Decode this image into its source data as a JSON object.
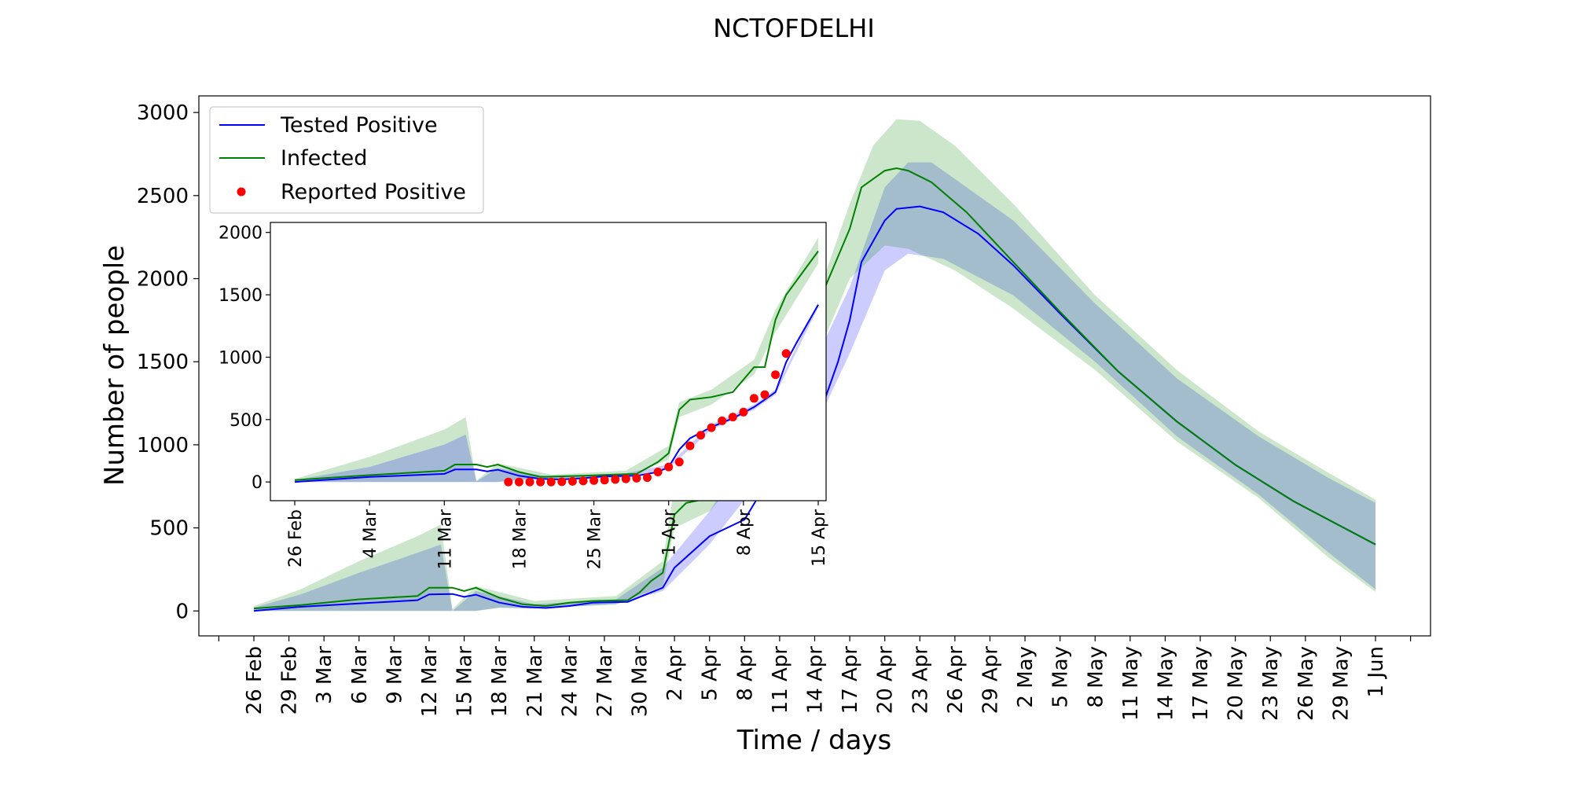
{
  "chart_data": {
    "type": "line",
    "title": "NCTOFDELHI",
    "xlabel": "Time / days",
    "ylabel": "Number of people",
    "start_date": "2020-02-26",
    "end_date": "2020-06-01",
    "xtick_labels": [
      "26 Feb",
      "29 Feb",
      "3 Mar",
      "6 Mar",
      "9 Mar",
      "12 Mar",
      "15 Mar",
      "18 Mar",
      "21 Mar",
      "24 Mar",
      "27 Mar",
      "30 Mar",
      "2 Apr",
      "5 Apr",
      "8 Apr",
      "11 Apr",
      "14 Apr",
      "17 Apr",
      "20 Apr",
      "23 Apr",
      "26 Apr",
      "29 Apr",
      "2 May",
      "5 May",
      "8 May",
      "11 May",
      "14 May",
      "17 May",
      "20 May",
      "23 May",
      "26 May",
      "29 May",
      "1 Jun"
    ],
    "ylim": [
      -150,
      3100
    ],
    "yticks": [
      0,
      500,
      1000,
      1500,
      2000,
      2500,
      3000
    ],
    "grid": false,
    "legend": {
      "placement": "upper-left",
      "entries": [
        {
          "name": "Tested Positive",
          "marker": "line",
          "color": "#0000ff"
        },
        {
          "name": "Infected",
          "marker": "line",
          "color": "#008000"
        },
        {
          "name": "Reported Positive",
          "marker": "dot",
          "color": "#ff0000"
        }
      ]
    },
    "series": [
      {
        "name": "Tested Positive",
        "color": "#0000ff",
        "points": [
          [
            "2020-02-26",
            0
          ],
          [
            "2020-03-01",
            25
          ],
          [
            "2020-03-06",
            45
          ],
          [
            "2020-03-11",
            65
          ],
          [
            "2020-03-12",
            100
          ],
          [
            "2020-03-14",
            102
          ],
          [
            "2020-03-15",
            85
          ],
          [
            "2020-03-16",
            98
          ],
          [
            "2020-03-18",
            50
          ],
          [
            "2020-03-20",
            25
          ],
          [
            "2020-03-22",
            18
          ],
          [
            "2020-03-24",
            30
          ],
          [
            "2020-03-26",
            50
          ],
          [
            "2020-03-29",
            55
          ],
          [
            "2020-04-01",
            140
          ],
          [
            "2020-04-02",
            260
          ],
          [
            "2020-04-05",
            450
          ],
          [
            "2020-04-08",
            550
          ],
          [
            "2020-04-11",
            900
          ],
          [
            "2020-04-14",
            1100
          ],
          [
            "2020-04-16",
            1500
          ],
          [
            "2020-04-17",
            1750
          ],
          [
            "2020-04-18",
            2100
          ],
          [
            "2020-04-20",
            2350
          ],
          [
            "2020-04-21",
            2420
          ],
          [
            "2020-04-23",
            2435
          ],
          [
            "2020-04-25",
            2400
          ],
          [
            "2020-04-28",
            2270
          ],
          [
            "2020-05-01",
            2080
          ],
          [
            "2020-05-05",
            1790
          ],
          [
            "2020-05-10",
            1440
          ],
          [
            "2020-05-15",
            1140
          ],
          [
            "2020-05-20",
            880
          ],
          [
            "2020-05-25",
            660
          ],
          [
            "2020-06-01",
            400
          ]
        ],
        "band_lower": [
          [
            "2020-02-26",
            0
          ],
          [
            "2020-03-16",
            0
          ],
          [
            "2020-03-18",
            20
          ],
          [
            "2020-03-21",
            15
          ],
          [
            "2020-03-28",
            40
          ],
          [
            "2020-04-01",
            120
          ],
          [
            "2020-04-05",
            400
          ],
          [
            "2020-04-10",
            850
          ],
          [
            "2020-04-14",
            1100
          ],
          [
            "2020-04-17",
            1550
          ],
          [
            "2020-04-20",
            2050
          ],
          [
            "2020-04-22",
            2150
          ],
          [
            "2020-04-25",
            2120
          ],
          [
            "2020-05-01",
            1900
          ],
          [
            "2020-05-08",
            1500
          ],
          [
            "2020-05-15",
            1050
          ],
          [
            "2020-05-22",
            700
          ],
          [
            "2020-05-28",
            350
          ],
          [
            "2020-06-01",
            130
          ]
        ],
        "band_upper": [
          [
            "2020-02-26",
            20
          ],
          [
            "2020-03-01",
            100
          ],
          [
            "2020-03-06",
            230
          ],
          [
            "2020-03-11",
            350
          ],
          [
            "2020-03-13",
            400
          ],
          [
            "2020-03-14",
            0
          ],
          [
            "2020-03-16",
            120
          ],
          [
            "2020-03-21",
            40
          ],
          [
            "2020-03-28",
            70
          ],
          [
            "2020-04-01",
            260
          ],
          [
            "2020-04-05",
            600
          ],
          [
            "2020-04-10",
            1150
          ],
          [
            "2020-04-14",
            1500
          ],
          [
            "2020-04-17",
            1950
          ],
          [
            "2020-04-20",
            2550
          ],
          [
            "2020-04-22",
            2700
          ],
          [
            "2020-04-24",
            2700
          ],
          [
            "2020-05-01",
            2350
          ],
          [
            "2020-05-08",
            1850
          ],
          [
            "2020-05-15",
            1400
          ],
          [
            "2020-05-22",
            1050
          ],
          [
            "2020-05-28",
            800
          ],
          [
            "2020-06-01",
            650
          ]
        ]
      },
      {
        "name": "Infected",
        "color": "#008000",
        "points": [
          [
            "2020-02-26",
            15
          ],
          [
            "2020-03-01",
            35
          ],
          [
            "2020-03-06",
            70
          ],
          [
            "2020-03-11",
            90
          ],
          [
            "2020-03-12",
            140
          ],
          [
            "2020-03-14",
            140
          ],
          [
            "2020-03-15",
            120
          ],
          [
            "2020-03-16",
            140
          ],
          [
            "2020-03-18",
            80
          ],
          [
            "2020-03-20",
            40
          ],
          [
            "2020-03-22",
            30
          ],
          [
            "2020-03-24",
            50
          ],
          [
            "2020-03-26",
            60
          ],
          [
            "2020-03-29",
            65
          ],
          [
            "2020-03-30",
            110
          ],
          [
            "2020-03-31",
            180
          ],
          [
            "2020-04-01",
            230
          ],
          [
            "2020-04-02",
            580
          ],
          [
            "2020-04-03",
            650
          ],
          [
            "2020-04-05",
            680
          ],
          [
            "2020-04-08",
            800
          ],
          [
            "2020-04-11",
            1300
          ],
          [
            "2020-04-14",
            1800
          ],
          [
            "2020-04-17",
            2300
          ],
          [
            "2020-04-18",
            2550
          ],
          [
            "2020-04-20",
            2650
          ],
          [
            "2020-04-21",
            2665
          ],
          [
            "2020-04-22",
            2650
          ],
          [
            "2020-04-24",
            2580
          ],
          [
            "2020-04-27",
            2400
          ],
          [
            "2020-05-01",
            2100
          ],
          [
            "2020-05-05",
            1800
          ],
          [
            "2020-05-10",
            1440
          ],
          [
            "2020-05-15",
            1140
          ],
          [
            "2020-05-20",
            880
          ],
          [
            "2020-05-25",
            660
          ],
          [
            "2020-06-01",
            400
          ]
        ],
        "band_lower": [
          [
            "2020-02-26",
            0
          ],
          [
            "2020-03-16",
            0
          ],
          [
            "2020-03-18",
            20
          ],
          [
            "2020-03-21",
            15
          ],
          [
            "2020-03-28",
            40
          ],
          [
            "2020-04-01",
            150
          ],
          [
            "2020-04-02",
            500
          ],
          [
            "2020-04-05",
            600
          ],
          [
            "2020-04-10",
            1000
          ],
          [
            "2020-04-14",
            1500
          ],
          [
            "2020-04-17",
            2000
          ],
          [
            "2020-04-20",
            2200
          ],
          [
            "2020-04-22",
            2180
          ],
          [
            "2020-04-26",
            2050
          ],
          [
            "2020-05-01",
            1820
          ],
          [
            "2020-05-08",
            1450
          ],
          [
            "2020-05-15",
            1020
          ],
          [
            "2020-05-22",
            680
          ],
          [
            "2020-05-28",
            320
          ],
          [
            "2020-06-01",
            115
          ]
        ],
        "band_upper": [
          [
            "2020-02-26",
            30
          ],
          [
            "2020-03-01",
            130
          ],
          [
            "2020-03-06",
            300
          ],
          [
            "2020-03-11",
            450
          ],
          [
            "2020-03-13",
            520
          ],
          [
            "2020-03-14",
            10
          ],
          [
            "2020-03-16",
            150
          ],
          [
            "2020-03-21",
            60
          ],
          [
            "2020-03-28",
            90
          ],
          [
            "2020-04-01",
            300
          ],
          [
            "2020-04-02",
            750
          ],
          [
            "2020-04-05",
            800
          ],
          [
            "2020-04-10",
            1350
          ],
          [
            "2020-04-14",
            1850
          ],
          [
            "2020-04-17",
            2450
          ],
          [
            "2020-04-19",
            2800
          ],
          [
            "2020-04-21",
            2960
          ],
          [
            "2020-04-23",
            2950
          ],
          [
            "2020-04-26",
            2800
          ],
          [
            "2020-05-01",
            2450
          ],
          [
            "2020-05-08",
            1900
          ],
          [
            "2020-05-15",
            1450
          ],
          [
            "2020-05-22",
            1080
          ],
          [
            "2020-05-28",
            830
          ],
          [
            "2020-06-01",
            670
          ]
        ]
      }
    ],
    "inset": {
      "xtick_labels": [
        "26 Feb",
        "4 Mar",
        "11 Mar",
        "18 Mar",
        "25 Mar",
        "1 Apr",
        "8 Apr",
        "15 Apr"
      ],
      "ylim": [
        -150,
        2080
      ],
      "yticks": [
        0,
        500,
        1000,
        1500,
        2000
      ],
      "tested_positive": [
        [
          "2020-02-26",
          0
        ],
        [
          "2020-03-04",
          40
        ],
        [
          "2020-03-11",
          65
        ],
        [
          "2020-03-12",
          100
        ],
        [
          "2020-03-14",
          100
        ],
        [
          "2020-03-15",
          85
        ],
        [
          "2020-03-16",
          98
        ],
        [
          "2020-03-18",
          50
        ],
        [
          "2020-03-20",
          25
        ],
        [
          "2020-03-22",
          20
        ],
        [
          "2020-03-24",
          30
        ],
        [
          "2020-03-26",
          45
        ],
        [
          "2020-03-29",
          50
        ],
        [
          "2020-03-31",
          80
        ],
        [
          "2020-04-01",
          120
        ],
        [
          "2020-04-02",
          260
        ],
        [
          "2020-04-03",
          350
        ],
        [
          "2020-04-05",
          440
        ],
        [
          "2020-04-07",
          510
        ],
        [
          "2020-04-09",
          600
        ],
        [
          "2020-04-11",
          720
        ],
        [
          "2020-04-12",
          960
        ],
        [
          "2020-04-13",
          1120
        ],
        [
          "2020-04-15",
          1420
        ]
      ],
      "infected": [
        [
          "2020-02-26",
          15
        ],
        [
          "2020-03-04",
          55
        ],
        [
          "2020-03-11",
          90
        ],
        [
          "2020-03-12",
          140
        ],
        [
          "2020-03-14",
          140
        ],
        [
          "2020-03-15",
          120
        ],
        [
          "2020-03-16",
          140
        ],
        [
          "2020-03-18",
          80
        ],
        [
          "2020-03-20",
          40
        ],
        [
          "2020-03-24",
          50
        ],
        [
          "2020-03-27",
          60
        ],
        [
          "2020-03-29",
          65
        ],
        [
          "2020-03-31",
          160
        ],
        [
          "2020-04-01",
          230
        ],
        [
          "2020-04-02",
          580
        ],
        [
          "2020-04-03",
          660
        ],
        [
          "2020-04-05",
          680
        ],
        [
          "2020-04-07",
          720
        ],
        [
          "2020-04-09",
          920
        ],
        [
          "2020-04-10",
          920
        ],
        [
          "2020-04-11",
          1300
        ],
        [
          "2020-04-12",
          1500
        ],
        [
          "2020-04-15",
          1850
        ]
      ],
      "infected_band_lower": [
        [
          "2020-02-26",
          0
        ],
        [
          "2020-03-16",
          0
        ],
        [
          "2020-03-18",
          20
        ],
        [
          "2020-03-28",
          40
        ],
        [
          "2020-04-01",
          180
        ],
        [
          "2020-04-02",
          520
        ],
        [
          "2020-04-05",
          620
        ],
        [
          "2020-04-09",
          860
        ],
        [
          "2020-04-11",
          1200
        ],
        [
          "2020-04-15",
          1750
        ]
      ],
      "infected_band_upper": [
        [
          "2020-02-26",
          25
        ],
        [
          "2020-03-04",
          200
        ],
        [
          "2020-03-11",
          420
        ],
        [
          "2020-03-13",
          520
        ],
        [
          "2020-03-14",
          10
        ],
        [
          "2020-03-16",
          150
        ],
        [
          "2020-03-21",
          60
        ],
        [
          "2020-03-28",
          90
        ],
        [
          "2020-04-01",
          290
        ],
        [
          "2020-04-02",
          640
        ],
        [
          "2020-04-05",
          740
        ],
        [
          "2020-04-09",
          980
        ],
        [
          "2020-04-11",
          1380
        ],
        [
          "2020-04-15",
          1960
        ]
      ],
      "tested_band_lower": [
        [
          "2020-02-26",
          0
        ],
        [
          "2020-03-16",
          0
        ],
        [
          "2020-03-18",
          15
        ],
        [
          "2020-03-28",
          35
        ],
        [
          "2020-04-01",
          110
        ],
        [
          "2020-04-05",
          420
        ],
        [
          "2020-04-09",
          580
        ],
        [
          "2020-04-11",
          700
        ],
        [
          "2020-04-15",
          1400
        ]
      ],
      "tested_band_upper": [
        [
          "2020-02-26",
          15
        ],
        [
          "2020-03-04",
          120
        ],
        [
          "2020-03-11",
          300
        ],
        [
          "2020-03-13",
          380
        ],
        [
          "2020-03-14",
          5
        ],
        [
          "2020-03-16",
          110
        ],
        [
          "2020-03-21",
          40
        ],
        [
          "2020-03-28",
          70
        ],
        [
          "2020-04-01",
          140
        ],
        [
          "2020-04-05",
          460
        ],
        [
          "2020-04-09",
          620
        ],
        [
          "2020-04-11",
          740
        ],
        [
          "2020-04-15",
          1440
        ]
      ],
      "reported_positive": [
        [
          "2020-03-17",
          0
        ],
        [
          "2020-03-18",
          0
        ],
        [
          "2020-03-19",
          0
        ],
        [
          "2020-03-20",
          0
        ],
        [
          "2020-03-21",
          0
        ],
        [
          "2020-03-22",
          2
        ],
        [
          "2020-03-23",
          5
        ],
        [
          "2020-03-24",
          8
        ],
        [
          "2020-03-25",
          12
        ],
        [
          "2020-03-26",
          15
        ],
        [
          "2020-03-27",
          20
        ],
        [
          "2020-03-28",
          25
        ],
        [
          "2020-03-29",
          30
        ],
        [
          "2020-03-30",
          35
        ],
        [
          "2020-03-31",
          80
        ],
        [
          "2020-04-01",
          120
        ],
        [
          "2020-04-02",
          160
        ],
        [
          "2020-04-03",
          290
        ],
        [
          "2020-04-04",
          375
        ],
        [
          "2020-04-05",
          435
        ],
        [
          "2020-04-06",
          490
        ],
        [
          "2020-04-07",
          520
        ],
        [
          "2020-04-08",
          560
        ],
        [
          "2020-04-09",
          670
        ],
        [
          "2020-04-10",
          700
        ],
        [
          "2020-04-11",
          860
        ],
        [
          "2020-04-12",
          1030
        ]
      ]
    }
  }
}
